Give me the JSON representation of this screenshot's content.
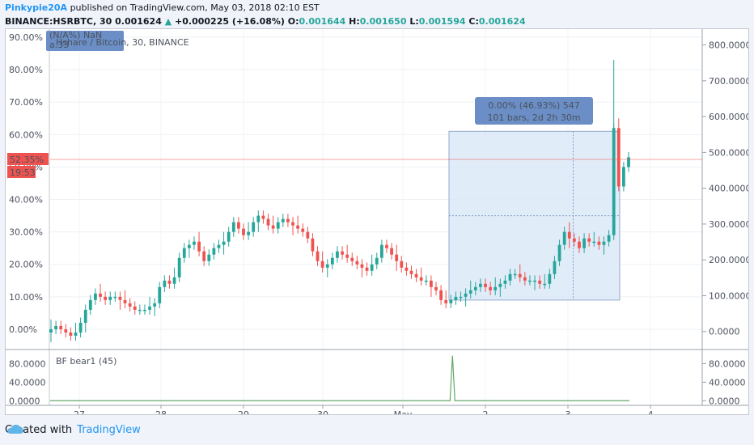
{
  "header": {
    "author": "Pinkypie20A",
    "published": "published on TradingView.com, May 03, 2018 02:10 EST",
    "symbol": "BINANCE:HSRBTC, 30",
    "last": "0.001624",
    "change_arrow": "▲",
    "change": "+0.000225 (+16.08%)",
    "o_label": "O:",
    "o": "0.001644",
    "h_label": "H:",
    "h": "0.001650",
    "l_label": "L:",
    "l": "0.001594",
    "c_label": "C:",
    "c": "0.001624"
  },
  "chart_data": [
    {
      "type": "candlestick",
      "title": "Hshare / Bitcoin, 30, BINANCE",
      "legend_overlay": [
        "(N/A%) NaN",
        "a.33"
      ],
      "x_ticks": [
        "27",
        "28",
        "29",
        "30",
        "May",
        "2",
        "3",
        "4"
      ],
      "left_axis_ticks": [
        "90.00%",
        "80.00%",
        "70.00%",
        "60.00%",
        "50.00%",
        "40.00%",
        "30.00%",
        "20.00%",
        "10.00%",
        "0.00%"
      ],
      "left_axis_range": [
        -6,
        91
      ],
      "right_axis_ticks": [
        "800.0000",
        "700.0000",
        "600.0000",
        "500.0000",
        "400.0000",
        "300.0000",
        "200.0000",
        "100.0000",
        "0.0000"
      ],
      "current_value_label": "52.35%",
      "countdown_label": "19:53",
      "measure_box": {
        "line1": "0.00% (46.93%) 547",
        "line2": "101 bars, 2d 2h 30m"
      },
      "close_series_pct": [
        0,
        1,
        0,
        -1,
        -2,
        -1,
        2,
        6,
        9,
        11,
        10,
        9,
        10,
        10,
        9,
        8,
        7,
        6,
        6,
        6,
        7,
        8,
        13,
        15,
        14,
        16,
        22,
        25,
        26,
        27,
        24,
        21,
        23,
        25,
        26,
        27,
        30,
        33,
        31,
        29,
        30,
        33,
        35,
        34,
        32,
        31,
        33,
        34,
        33,
        32,
        31,
        30,
        28,
        24,
        21,
        19,
        20,
        22,
        24,
        23,
        22,
        21,
        20,
        19,
        18,
        20,
        22,
        26,
        25,
        23,
        21,
        19,
        18,
        17,
        16,
        15,
        15,
        13,
        12,
        9,
        8,
        9,
        10,
        10,
        11,
        12,
        13,
        14,
        13,
        12,
        13,
        14,
        15,
        17,
        17,
        16,
        15,
        15,
        15,
        14,
        14,
        17,
        21,
        26,
        30,
        28,
        27,
        25,
        28,
        27,
        27,
        26,
        27,
        29,
        62,
        44,
        50,
        53
      ]
    },
    {
      "type": "line",
      "title": "BF bear1 (45)",
      "y_ticks": [
        "80.0000",
        "40.0000",
        "0.0000"
      ],
      "ylim": [
        -3,
        100
      ],
      "spike_at_fraction": 0.617,
      "spike_value": 97,
      "baseline": 0
    }
  ],
  "footer": {
    "created_with": "Created with",
    "brand": "TradingView"
  },
  "colors": {
    "up": "#26a69a",
    "down": "#ef5350",
    "price_line": "#ef5350",
    "measure_fill": "#dce9f9",
    "measure_label": "#6a8ec5",
    "pane_line": "#63a86a"
  }
}
